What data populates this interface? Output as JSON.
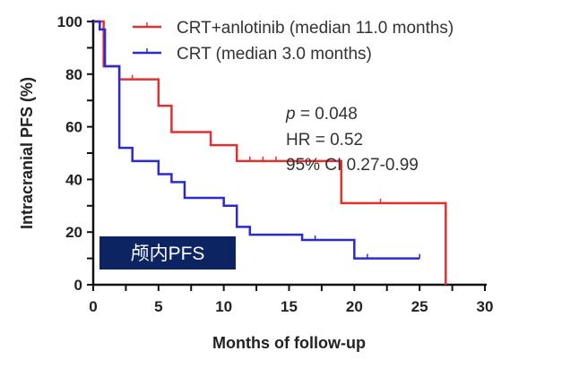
{
  "chart_data": {
    "type": "line",
    "subtype": "kaplan-meier",
    "xlabel": "Months of follow-up",
    "ylabel": "Intracranial PFS (%)",
    "xlim": [
      0,
      30
    ],
    "ylim": [
      0,
      100
    ],
    "xticks": [
      0,
      5,
      10,
      15,
      20,
      25,
      30
    ],
    "yticks": [
      0,
      20,
      40,
      60,
      80,
      100
    ],
    "series": [
      {
        "name": "CRT+anlotinib (median 11.0 months)",
        "color": "#e03030",
        "steps": [
          [
            0,
            100
          ],
          [
            0.8,
            83
          ],
          [
            2,
            78
          ],
          [
            5,
            68
          ],
          [
            6,
            58
          ],
          [
            9,
            53
          ],
          [
            11,
            47
          ],
          [
            19,
            31
          ],
          [
            27,
            0
          ]
        ],
        "censored": [
          [
            3,
            78
          ],
          [
            12,
            47
          ],
          [
            13,
            47
          ],
          [
            14,
            47
          ],
          [
            22,
            31
          ]
        ]
      },
      {
        "name": "CRT (median 3.0 months)",
        "color": "#2a2ad0",
        "steps": [
          [
            0,
            100
          ],
          [
            0.5,
            97
          ],
          [
            0.9,
            83
          ],
          [
            2,
            52
          ],
          [
            3,
            47
          ],
          [
            5,
            42
          ],
          [
            6,
            39
          ],
          [
            7,
            33
          ],
          [
            10,
            30
          ],
          [
            11,
            22
          ],
          [
            12,
            19
          ],
          [
            16,
            17
          ],
          [
            20,
            10
          ],
          [
            25,
            10
          ]
        ],
        "censored": [
          [
            17,
            17
          ],
          [
            21,
            10
          ],
          [
            25,
            10
          ]
        ]
      }
    ],
    "annotations": {
      "p_label": "p",
      "p_value": " = 0.048",
      "hr": "HR = 0.52",
      "ci": "95% CI 0.27-0.99"
    },
    "badge": "颅内PFS",
    "badge_color": "#0c2461"
  }
}
